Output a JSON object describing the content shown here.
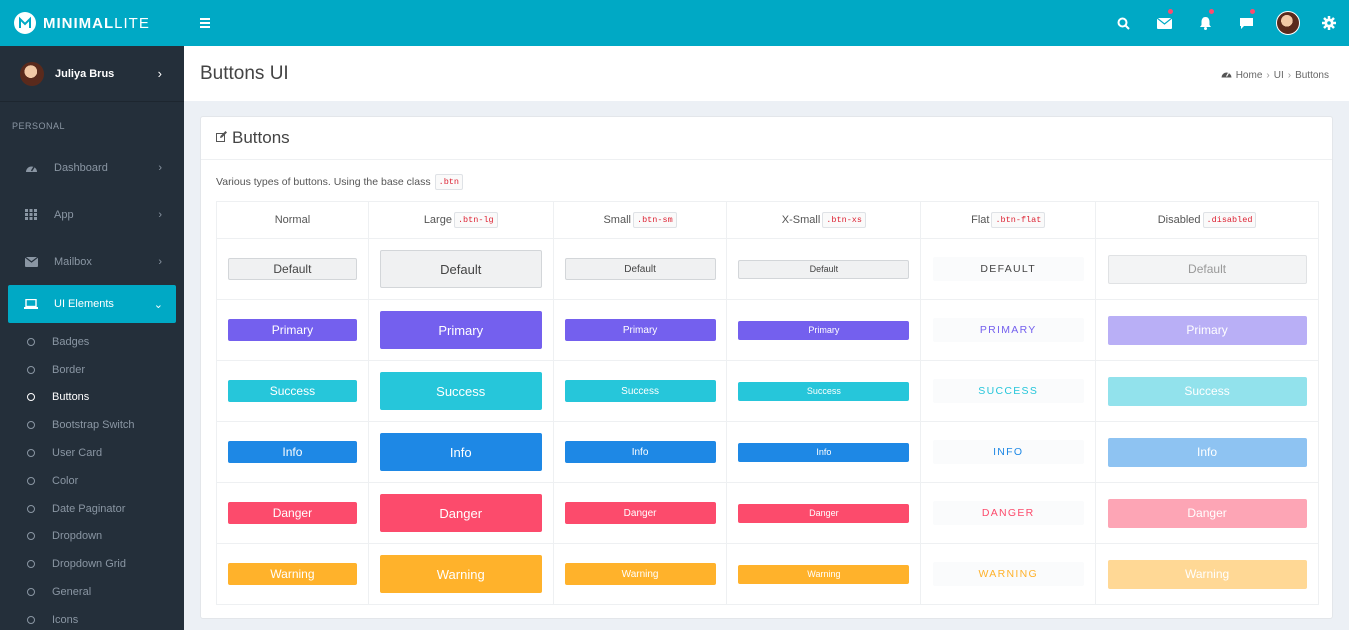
{
  "brand": {
    "bold": "MINIMAL",
    "light": "LITE"
  },
  "topbar": {
    "icons": [
      "menu-icon",
      "search-icon",
      "mail-icon",
      "bell-icon",
      "chat-icon",
      "user-avatar",
      "gear-icon"
    ]
  },
  "sidebar": {
    "user_name": "Juliya Brus",
    "section_label": "PERSONAL",
    "menu": [
      {
        "label": "Dashboard",
        "icon": "dashboard-icon"
      },
      {
        "label": "App",
        "icon": "grid-icon"
      },
      {
        "label": "Mailbox",
        "icon": "mail-icon"
      },
      {
        "label": "UI Elements",
        "icon": "laptop-icon",
        "active": true
      }
    ],
    "submenu": [
      "Badges",
      "Border",
      "Buttons",
      "Bootstrap Switch",
      "User Card",
      "Color",
      "Date Paginator",
      "Dropdown",
      "Dropdown Grid",
      "General",
      "Icons"
    ],
    "submenu_current": "Buttons"
  },
  "header": {
    "title": "Buttons UI",
    "breadcrumb": [
      "Home",
      "UI",
      "Buttons"
    ]
  },
  "box": {
    "title": "Buttons",
    "description": "Various types of buttons. Using the base class",
    "description_code": ".btn"
  },
  "table": {
    "columns": [
      {
        "label": "Normal",
        "code": ""
      },
      {
        "label": "Large",
        "code": ".btn-lg"
      },
      {
        "label": "Small",
        "code": ".btn-sm"
      },
      {
        "label": "X-Small",
        "code": ".btn-xs"
      },
      {
        "label": "Flat",
        "code": ".btn-flat"
      },
      {
        "label": "Disabled",
        "code": ".disabled"
      }
    ],
    "rows": [
      {
        "normal": "Default",
        "lg": "Default",
        "sm": "Default",
        "xs": "Default",
        "flat": "DEFAULT",
        "disabled": "Default"
      },
      {
        "normal": "Primary",
        "lg": "Primary",
        "sm": "Primary",
        "xs": "Primary",
        "flat": "PRIMARY",
        "disabled": "Primary"
      },
      {
        "normal": "Success",
        "lg": "Success",
        "sm": "Success",
        "xs": "Success",
        "flat": "SUCCESS",
        "disabled": "Success"
      },
      {
        "normal": "Info",
        "lg": "Info",
        "sm": "Info",
        "xs": "Info",
        "flat": "INFO",
        "disabled": "Info"
      },
      {
        "normal": "Danger",
        "lg": "Danger",
        "sm": "Danger",
        "xs": "Danger",
        "flat": "DANGER",
        "disabled": "Danger"
      },
      {
        "normal": "Warning",
        "lg": "Warning",
        "sm": "Warning",
        "xs": "Warning",
        "flat": "WARNING",
        "disabled": "Warning"
      }
    ]
  },
  "colors": {
    "accent": "#00a9c5",
    "sidebar_bg": "#242f3a",
    "primary": "#7460ee",
    "success": "#26c6da",
    "info": "#1e88e5",
    "danger": "#fc4b6c",
    "warning": "#ffb22b"
  }
}
